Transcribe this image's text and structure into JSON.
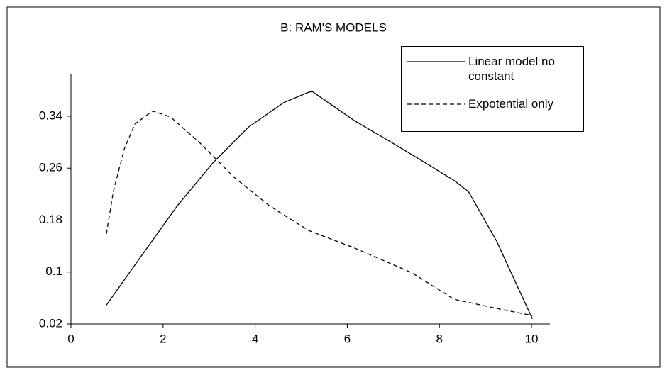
{
  "chart_data": {
    "type": "line",
    "title": "B: RAM'S MODELS",
    "series": [
      {
        "name": "Linear model no constant",
        "color": "#000000",
        "dash": "none",
        "x": [
          0.77,
          1.54,
          2.31,
          3.08,
          3.85,
          4.62,
          5.16,
          5.24,
          6.16,
          6.93,
          7.7,
          8.32,
          8.63,
          9.24,
          10.02
        ],
        "values": [
          0.049,
          0.126,
          0.202,
          0.268,
          0.323,
          0.361,
          0.377,
          0.378,
          0.333,
          0.301,
          0.268,
          0.241,
          0.224,
          0.148,
          0.028
        ]
      },
      {
        "name": "Expotential only",
        "color": "#000000",
        "dash": "6 4",
        "x": [
          0.77,
          0.92,
          1.16,
          1.39,
          1.77,
          2.16,
          2.77,
          3.54,
          4.31,
          5.16,
          6.16,
          7.4,
          8.32,
          9.24,
          10.02
        ],
        "values": [
          0.159,
          0.224,
          0.29,
          0.328,
          0.348,
          0.339,
          0.301,
          0.246,
          0.202,
          0.164,
          0.137,
          0.099,
          0.058,
          0.044,
          0.033
        ]
      }
    ],
    "xlim": [
      0,
      10.4
    ],
    "xticks": [
      0,
      2,
      4,
      6,
      8,
      10
    ],
    "ylim": [
      0.02,
      0.4
    ],
    "yticks": [
      0.02,
      0.1,
      0.18,
      0.26,
      0.34
    ],
    "legend": "upper-right"
  }
}
